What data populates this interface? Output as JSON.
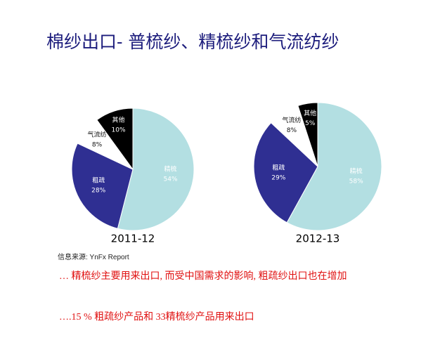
{
  "slide": {
    "title": "棉纱出口- 普梳纱、精梳纱和气流纺纱",
    "source": "信息来源: YnFx Report",
    "bullets": [
      "… 精梳纱主要用来出口, 而受中国需求的影响, 粗疏纱出口也在增加",
      "….15 % 粗疏纱产品和 33精梳纱产品用来出口"
    ]
  },
  "chart_data": [
    {
      "type": "pie",
      "title": "2011-12",
      "categories": [
        "精梳",
        "粗疏",
        "气流纺",
        "其他"
      ],
      "values": [
        54,
        28,
        8,
        10
      ],
      "value_labels": [
        "54%",
        "28%",
        "8%",
        "10%"
      ],
      "colors": [
        "#b3dfe2",
        "#2f2f92",
        "#ffffff",
        "#000000"
      ]
    },
    {
      "type": "pie",
      "title": "2012-13",
      "categories": [
        "精梳",
        "粗疏",
        "气流纺",
        "其他"
      ],
      "values": [
        58,
        29,
        8,
        5
      ],
      "value_labels": [
        "58%",
        "29%",
        "8%",
        "5%"
      ],
      "colors": [
        "#b3dfe2",
        "#2f2f92",
        "#ffffff",
        "#000000"
      ]
    }
  ]
}
